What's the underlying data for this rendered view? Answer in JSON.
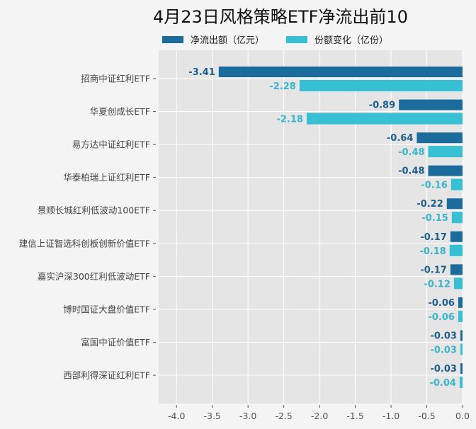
{
  "chart_data": {
    "type": "bar",
    "orientation": "horizontal",
    "title": "4月23日风格策略ETF净流出前10",
    "xlabel": "",
    "ylabel": "",
    "xlim": [
      -4.25,
      0
    ],
    "xticks": [
      "-4.0",
      "-3.5",
      "-3.0",
      "-2.5",
      "-2.0",
      "-1.5",
      "-1.0",
      "-0.5",
      "0.0"
    ],
    "xtick_values": [
      -4.0,
      -3.5,
      -3.0,
      -2.5,
      -2.0,
      -1.5,
      -1.0,
      -0.5,
      0.0
    ],
    "grid": true,
    "legend_position": "top",
    "categories": [
      "招商中证红利ETF",
      "华夏创成长ETF",
      "易方达中证红利ETF",
      "华泰柏瑞上证红利ETF",
      "景顺长城红利低波动100ETF",
      "建信上证智选科创板创新价值ETF",
      "嘉实沪深300红利低波动ETF",
      "博时国证大盘价值ETF",
      "富国中证价值ETF",
      "西部利得深证红利ETF"
    ],
    "series": [
      {
        "name": "净流出额（亿元）",
        "color": "#1b6c9c",
        "label_color": "#1d5f8a",
        "values": [
          -3.41,
          -0.89,
          -0.64,
          -0.48,
          -0.22,
          -0.17,
          -0.17,
          -0.06,
          -0.03,
          -0.03
        ],
        "labels": [
          "-3.41",
          "-0.89",
          "-0.64",
          "-0.48",
          "-0.22",
          "-0.17",
          "-0.17",
          "-0.06",
          "-0.03",
          "-0.03"
        ]
      },
      {
        "name": "份额变化（亿份）",
        "color": "#37c0d4",
        "label_color": "#38b4cb",
        "values": [
          -2.28,
          -2.18,
          -0.48,
          -0.16,
          -0.15,
          -0.18,
          -0.12,
          -0.06,
          -0.03,
          -0.04
        ],
        "labels": [
          "-2.28",
          "-2.18",
          "-0.48",
          "-0.16",
          "-0.15",
          "-0.18",
          "-0.12",
          "-0.06",
          "-0.03",
          "-0.04"
        ]
      }
    ]
  }
}
